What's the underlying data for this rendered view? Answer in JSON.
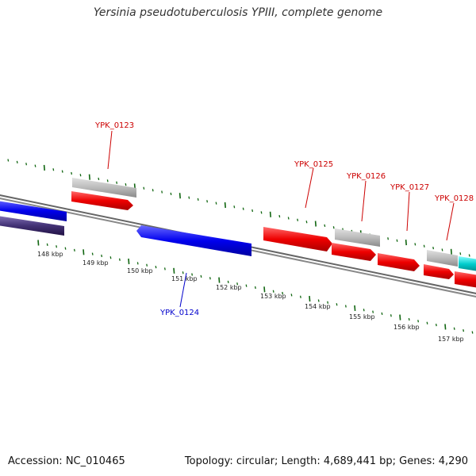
{
  "title": "Yersinia pseudotuberculosis YPIII, complete genome",
  "accession": "Accession: NC_010465",
  "summary": "Topology: circular; Length: 4,689,441 bp; Genes: 4,290",
  "colors": {
    "forward_gene": "#ff0000",
    "reverse_gene": "#0000ee",
    "gene_label_forward": "#cc0000",
    "gene_label_reverse": "#0000cc",
    "gray_feature": "#b8b8b8",
    "cyan_feature": "#00cccc",
    "dark_feature": "#443377",
    "tick": "#116611",
    "backbone": "#777777"
  },
  "ticks": {
    "labels": [
      "148 kbp",
      "149 kbp",
      "150 kbp",
      "151 kbp",
      "152 kbp",
      "153 kbp",
      "154 kbp",
      "155 kbp",
      "156 kbp",
      "157 kbp"
    ]
  },
  "genes": {
    "forward": [
      "YPK_0123",
      "YPK_0125",
      "YPK_0126",
      "YPK_0127",
      "YPK_0128"
    ],
    "reverse": [
      "YPK_0124"
    ]
  }
}
